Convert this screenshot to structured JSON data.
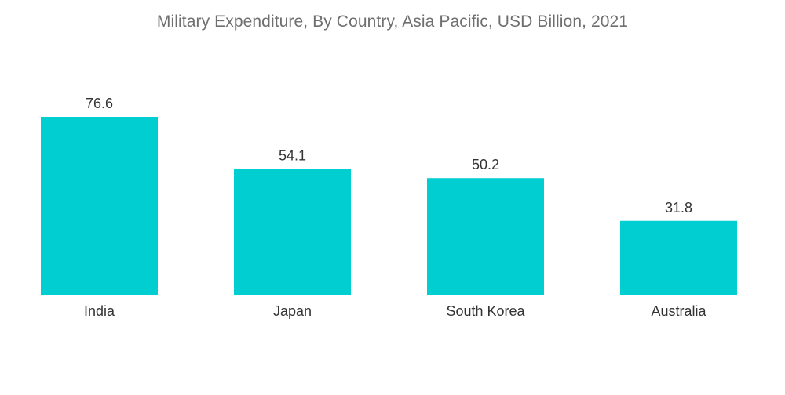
{
  "chart_data": {
    "type": "bar",
    "title": "Military Expenditure, By Country, Asia Pacific, USD Billion, 2021",
    "categories": [
      "India",
      "Japan",
      "South Korea",
      "Australia"
    ],
    "values": [
      76.6,
      54.1,
      50.2,
      31.8
    ],
    "value_labels": [
      "76.6",
      "54.1",
      "50.2",
      "31.8"
    ],
    "xlabel": "",
    "ylabel": "",
    "ylim": [
      0,
      76.6
    ],
    "grid": false,
    "legend": "none",
    "bar_color": "#00ced1"
  }
}
